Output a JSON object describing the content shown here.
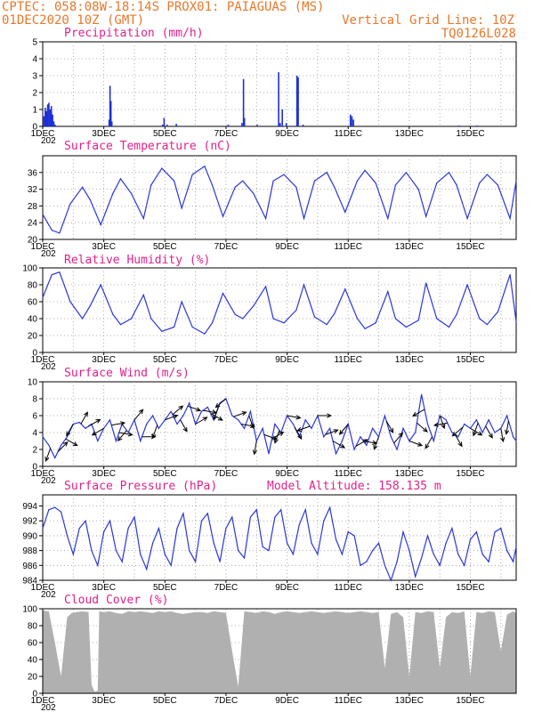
{
  "header": {
    "line1": "CPTEC:   058:08W-18:14S   PROX01: PAIAGUAS (MS)",
    "line2": "01DEC2020 10Z (GMT)",
    "grid_label": "Vertical Grid Line: 10Z",
    "code": "TQ0126L028"
  },
  "colors": {
    "header": "#e8782a",
    "title": "#e0218a",
    "series": "#2b36d9",
    "bars": "#1f2fd6",
    "cloud": "#b0b0b0",
    "arrow": "#000000"
  },
  "x_ticks": [
    "1DEC",
    "3DEC",
    "5DEC",
    "7DEC",
    "9DEC",
    "11DEC",
    "13DEC",
    "15DEC"
  ],
  "x_year_fragment": "202",
  "chart_data": [
    {
      "id": "precip",
      "type": "bar",
      "title": "Precipitation (mm/h)",
      "ylim": [
        0,
        5
      ],
      "yticks": [
        0,
        1,
        2,
        3,
        4,
        5
      ],
      "xlim": [
        0,
        15.5
      ],
      "x": [
        0.02,
        0.06,
        0.1,
        0.14,
        0.18,
        0.22,
        0.26,
        0.3,
        0.34,
        0.38,
        2.15,
        2.18,
        2.21,
        2.24,
        3.9,
        3.95,
        4.05,
        4.35,
        6.05,
        6.5,
        6.55,
        6.58,
        7.0,
        7.7,
        7.75,
        7.82,
        7.95,
        8.3,
        8.34,
        8.5,
        10.05,
        10.1,
        10.15,
        13.6,
        14.2
      ],
      "values": [
        0.6,
        1.1,
        0.9,
        1.3,
        1.4,
        1.0,
        1.2,
        0.7,
        0.3,
        0.1,
        0.4,
        2.4,
        1.5,
        0.3,
        0.1,
        0.5,
        0.1,
        0.15,
        0.1,
        0.2,
        2.8,
        0.5,
        0.1,
        3.2,
        0.2,
        1.0,
        0.2,
        3.0,
        2.9,
        0.1,
        0.7,
        0.6,
        0.4,
        0.05,
        0.05
      ]
    },
    {
      "id": "temp",
      "type": "line",
      "title": "Surface Temperature (nC)",
      "ylim": [
        20,
        40
      ],
      "yticks": [
        20,
        24,
        28,
        32,
        36
      ],
      "xlim": [
        0,
        15.5
      ],
      "x": [
        0,
        0.3,
        0.55,
        0.9,
        1.3,
        1.55,
        1.9,
        2.3,
        2.55,
        2.9,
        3.3,
        3.55,
        3.9,
        4.3,
        4.55,
        4.9,
        5.3,
        5.55,
        5.9,
        6.3,
        6.55,
        6.9,
        7.3,
        7.55,
        7.9,
        8.3,
        8.55,
        8.9,
        9.3,
        9.55,
        9.9,
        10.3,
        10.55,
        10.9,
        11.3,
        11.55,
        11.9,
        12.3,
        12.55,
        12.9,
        13.3,
        13.55,
        13.9,
        14.3,
        14.55,
        14.9,
        15.3,
        15.5
      ],
      "values": [
        26,
        22.2,
        21.5,
        28.5,
        32.5,
        29.5,
        23.5,
        31,
        34.5,
        31,
        25,
        33,
        37,
        34,
        27.5,
        35.5,
        37.5,
        33,
        25.5,
        32.5,
        34,
        31,
        25,
        34,
        35.5,
        32.5,
        25,
        34,
        36,
        32.5,
        26.5,
        34,
        36.5,
        33.5,
        25,
        33,
        36,
        32,
        25.5,
        33.5,
        36,
        33,
        25,
        33.5,
        35.5,
        33,
        25,
        34
      ]
    },
    {
      "id": "rh",
      "type": "line",
      "title": "Relative Humidity (%)",
      "ylim": [
        0,
        100
      ],
      "yticks": [
        0,
        20,
        40,
        60,
        80,
        100
      ],
      "xlim": [
        0,
        15.5
      ],
      "x": [
        0,
        0.3,
        0.55,
        0.9,
        1.3,
        1.55,
        1.9,
        2.3,
        2.55,
        2.9,
        3.3,
        3.55,
        3.9,
        4.3,
        4.55,
        4.9,
        5.3,
        5.55,
        5.9,
        6.3,
        6.55,
        6.9,
        7.3,
        7.55,
        7.9,
        8.3,
        8.55,
        8.9,
        9.3,
        9.55,
        9.9,
        10.3,
        10.55,
        10.9,
        11.3,
        11.55,
        11.9,
        12.3,
        12.55,
        12.9,
        13.3,
        13.55,
        13.9,
        14.3,
        14.55,
        14.9,
        15.3,
        15.5
      ],
      "values": [
        65,
        92,
        95,
        60,
        40,
        55,
        80,
        45,
        33,
        40,
        68,
        40,
        25,
        30,
        60,
        30,
        22,
        35,
        70,
        45,
        40,
        55,
        78,
        40,
        35,
        50,
        80,
        42,
        33,
        46,
        75,
        40,
        28,
        35,
        72,
        40,
        30,
        38,
        82,
        40,
        30,
        45,
        80,
        40,
        33,
        48,
        92,
        36
      ]
    },
    {
      "id": "wind",
      "type": "line",
      "title": "Surface Wind (m/s)",
      "ylim": [
        0,
        10
      ],
      "yticks": [
        0,
        2,
        4,
        6,
        8,
        10
      ],
      "xlim": [
        0,
        15.5
      ],
      "x": [
        0,
        0.2,
        0.4,
        0.6,
        0.8,
        1.0,
        1.2,
        1.4,
        1.6,
        1.8,
        2.0,
        2.2,
        2.4,
        2.6,
        2.8,
        3.0,
        3.2,
        3.4,
        3.6,
        3.8,
        4.0,
        4.2,
        4.4,
        4.6,
        4.8,
        5.0,
        5.2,
        5.4,
        5.6,
        5.8,
        6.0,
        6.2,
        6.4,
        6.6,
        6.8,
        7.0,
        7.2,
        7.4,
        7.6,
        7.8,
        8.0,
        8.2,
        8.4,
        8.6,
        8.8,
        9.0,
        9.2,
        9.4,
        9.6,
        9.8,
        10.0,
        10.2,
        10.4,
        10.6,
        10.8,
        11.0,
        11.2,
        11.4,
        11.6,
        11.8,
        12.0,
        12.2,
        12.4,
        12.6,
        12.8,
        13.0,
        13.2,
        13.4,
        13.6,
        13.8,
        14.0,
        14.2,
        14.4,
        14.6,
        14.8,
        15.0,
        15.2,
        15.4,
        15.5
      ],
      "values": [
        3.5,
        2.5,
        1.0,
        2.5,
        3.5,
        5.0,
        5.2,
        4.5,
        5.0,
        3.0,
        4.5,
        5.5,
        3.0,
        5.0,
        4.0,
        5.5,
        3.0,
        5.0,
        6.0,
        4.5,
        5.5,
        6.5,
        5.0,
        6.0,
        7.5,
        5.0,
        6.5,
        7.0,
        5.5,
        7.5,
        8.0,
        6.0,
        5.5,
        4.5,
        6.5,
        3.0,
        4.5,
        1.5,
        5.0,
        4.0,
        6.0,
        5.0,
        3.5,
        5.5,
        4.5,
        6.0,
        3.5,
        4.5,
        1.5,
        3.0,
        5.0,
        2.0,
        3.5,
        2.5,
        4.5,
        3.5,
        6.0,
        3.5,
        2.0,
        4.5,
        3.0,
        4.0,
        8.5,
        5.0,
        3.0,
        6.0,
        5.5,
        4.0,
        3.5,
        5.0,
        4.5,
        5.5,
        4.0,
        5.5,
        4.0,
        4.5,
        6.0,
        3.5,
        3.0
      ],
      "arrow_x": [
        0.25,
        0.5,
        0.75,
        1.0,
        1.25,
        1.5,
        2.0,
        2.25,
        2.5,
        2.75,
        3.0,
        3.25,
        3.75,
        4.0,
        4.25,
        4.5,
        4.75,
        5.0,
        5.25,
        5.5,
        5.75,
        6.0,
        6.25,
        6.5,
        6.75,
        7.0,
        7.25,
        7.5,
        7.75,
        8.0,
        8.25,
        8.75,
        9.0,
        9.25,
        9.5,
        10.0,
        10.25,
        10.5,
        11.0,
        11.25,
        11.5,
        12.0,
        12.25,
        12.5,
        12.75,
        13.0,
        13.25,
        13.5,
        13.75,
        14.0,
        14.25,
        14.5,
        15.0,
        15.25
      ],
      "arrow_dir_deg": [
        200,
        45,
        120,
        210,
        30,
        60,
        240,
        80,
        100,
        220,
        40,
        90,
        200,
        70,
        50,
        150,
        110,
        60,
        100,
        120,
        200,
        230,
        70,
        100,
        160,
        190,
        110,
        60,
        200,
        100,
        150,
        250,
        90,
        70,
        120,
        220,
        60,
        100,
        200,
        150,
        40,
        110,
        130,
        240,
        210,
        160,
        260,
        150,
        230,
        120,
        200,
        150,
        170,
        190
      ]
    },
    {
      "id": "pressure",
      "type": "line",
      "title": "Surface Pressure (hPa)",
      "model_altitude": "Model Altitude: 158.135 m",
      "ylim": [
        984,
        995.5
      ],
      "yticks": [
        984,
        986,
        988,
        990,
        992,
        994
      ],
      "xlim": [
        0,
        15.5
      ],
      "x": [
        0,
        0.2,
        0.4,
        0.6,
        0.8,
        1.0,
        1.2,
        1.4,
        1.6,
        1.8,
        2.0,
        2.2,
        2.4,
        2.6,
        2.8,
        3.0,
        3.2,
        3.4,
        3.6,
        3.8,
        4.0,
        4.2,
        4.4,
        4.6,
        4.8,
        5.0,
        5.2,
        5.4,
        5.6,
        5.8,
        6.0,
        6.2,
        6.4,
        6.6,
        6.8,
        7.0,
        7.2,
        7.4,
        7.6,
        7.8,
        8.0,
        8.2,
        8.4,
        8.6,
        8.8,
        9.0,
        9.2,
        9.4,
        9.6,
        9.8,
        10.0,
        10.2,
        10.4,
        10.6,
        10.8,
        11.0,
        11.2,
        11.4,
        11.6,
        11.8,
        12.0,
        12.2,
        12.4,
        12.6,
        12.8,
        13.0,
        13.2,
        13.4,
        13.6,
        13.8,
        14.0,
        14.2,
        14.4,
        14.6,
        14.8,
        15.0,
        15.2,
        15.4,
        15.5
      ],
      "values": [
        991,
        993.5,
        993.8,
        993.2,
        990,
        987.5,
        991,
        992,
        988,
        986,
        990.5,
        992,
        988,
        986.5,
        991,
        992.5,
        987.5,
        985.5,
        989,
        991,
        987.5,
        986,
        991,
        993,
        988,
        986.5,
        992,
        993,
        989,
        986.5,
        991,
        992.5,
        988,
        987,
        992.5,
        993.5,
        988.5,
        988,
        992.5,
        993.5,
        989,
        987.5,
        991.5,
        993.5,
        989,
        987.5,
        992,
        993.8,
        989.5,
        987.5,
        990.5,
        990,
        986,
        986.5,
        988,
        989,
        986,
        984,
        986.5,
        990.5,
        988,
        984.5,
        987,
        990,
        987.5,
        986,
        989,
        991,
        987.5,
        986,
        989.5,
        990.5,
        987.5,
        986.5,
        990.5,
        991,
        988,
        986.5,
        988.5
      ]
    },
    {
      "id": "cloud",
      "type": "area",
      "title": "Cloud Cover (%)",
      "ylim": [
        0,
        100
      ],
      "yticks": [
        0,
        20,
        40,
        60,
        80,
        100
      ],
      "xlim": [
        0,
        15.5
      ],
      "x": [
        0,
        0.2,
        0.4,
        0.6,
        0.8,
        0.95,
        1.1,
        1.3,
        1.5,
        1.6,
        1.7,
        1.8,
        1.85,
        2.0,
        2.2,
        2.4,
        2.6,
        2.8,
        3.0,
        3.2,
        3.4,
        3.6,
        3.8,
        4.0,
        4.2,
        4.4,
        4.6,
        4.8,
        5.0,
        5.2,
        5.4,
        5.6,
        5.8,
        6.0,
        6.2,
        6.4,
        6.6,
        6.8,
        7.0,
        7.2,
        7.4,
        7.6,
        7.8,
        8.0,
        8.2,
        8.4,
        8.6,
        8.8,
        9.0,
        9.2,
        9.4,
        9.6,
        9.8,
        10.0,
        10.2,
        10.4,
        10.6,
        10.8,
        11.0,
        11.2,
        11.4,
        11.6,
        11.8,
        12.0,
        12.2,
        12.4,
        12.6,
        12.8,
        13.0,
        13.2,
        13.4,
        13.6,
        13.8,
        14.0,
        14.2,
        14.4,
        14.6,
        14.8,
        15.0,
        15.2,
        15.4,
        15.5
      ],
      "values": [
        98,
        97,
        60,
        20,
        90,
        95,
        96,
        97,
        96,
        10,
        2,
        3,
        97,
        96,
        97,
        95,
        94,
        97,
        96,
        97,
        96,
        95,
        97,
        96,
        97,
        95,
        94,
        95,
        96,
        96,
        95,
        97,
        96,
        95,
        50,
        8,
        97,
        96,
        95,
        97,
        96,
        94,
        96,
        97,
        96,
        95,
        96,
        97,
        96,
        95,
        96,
        97,
        96,
        95,
        96,
        97,
        96,
        95,
        96,
        30,
        94,
        96,
        90,
        20,
        96,
        95,
        97,
        96,
        30,
        90,
        96,
        95,
        97,
        20,
        96,
        95,
        97,
        96,
        50,
        93,
        97,
        95
      ]
    }
  ]
}
